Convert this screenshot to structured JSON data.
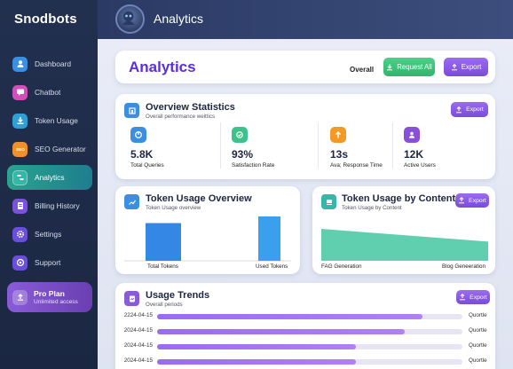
{
  "brand": "Snodbots",
  "header": {
    "title": "Analytics"
  },
  "sidebar": {
    "items": [
      {
        "label": "Dashboard",
        "icon": "user-icon",
        "color": "#3b8fe0"
      },
      {
        "label": "Chatbot",
        "icon": "chat-icon",
        "color": "#d04fb8"
      },
      {
        "label": "Token Usage",
        "icon": "download-icon",
        "color": "#2f9fd6"
      },
      {
        "label": "SEO Generator",
        "icon": "seo-icon",
        "color": "#f0902a"
      },
      {
        "label": "Analytics",
        "icon": "analytics-icon",
        "color": "#34b6a8",
        "active": true
      },
      {
        "label": "Billing History",
        "icon": "billing-icon",
        "color": "#7a54d6"
      },
      {
        "label": "Settings",
        "icon": "gear-icon",
        "color": "#6a4fd8"
      },
      {
        "label": "Support",
        "icon": "support-icon",
        "color": "#6a4fd8"
      }
    ],
    "pro": {
      "title": "Pro Plan",
      "subtitle": "Unlimited access"
    }
  },
  "page": {
    "title": "Analytics",
    "overall_label": "Overall",
    "request_all_label": "Request All",
    "export_label": "Export"
  },
  "overview": {
    "title": "Overview Statistics",
    "subtitle": "Overall performance weittics",
    "export_label": "Export",
    "stats": [
      {
        "value": "5.8K",
        "label": "Total Queries",
        "color": "#3a8fe0",
        "icon": "chart-icon"
      },
      {
        "value": "93%",
        "label": "Satisfaction Rate",
        "color": "#3cc28a",
        "icon": "thumb-icon"
      },
      {
        "value": "13s",
        "label": "Ava; Response Time",
        "color": "#f39a26",
        "icon": "arrow-up-icon"
      },
      {
        "value": "12K",
        "label": "Active Users",
        "color": "#8a4fd8",
        "icon": "user-icon"
      }
    ]
  },
  "token_overview": {
    "title": "Token Usage Overview",
    "subtitle": "Token Usage overview",
    "x_left": "Total Tokens",
    "x_right": "Used Tokens"
  },
  "token_content": {
    "title": "Token Usage by Content",
    "subtitle": "Token Usage by Content",
    "export_label": "Export",
    "x_left": "FAG Generation",
    "x_right": "Blog Geneeration"
  },
  "trends": {
    "title": "Usage Trends",
    "subtitle": "Overall periods",
    "export_label": "Export",
    "rows": [
      {
        "date": "2224-04-15",
        "fill": 0.87,
        "tag": "Quortle"
      },
      {
        "date": "2024-04-15",
        "fill": 0.81,
        "tag": "Quortle"
      },
      {
        "date": "2024-04-15",
        "fill": 0.65,
        "tag": "Quortle"
      },
      {
        "date": "2024-04-15",
        "fill": 0.65,
        "tag": "Quortle"
      }
    ]
  },
  "chart_data": [
    {
      "type": "bar",
      "categories": [
        "Total Tokens",
        "Used Tokens"
      ],
      "values": [
        0.85,
        1.0
      ],
      "title": "Token Usage Overview",
      "xlabel": "",
      "ylabel": ""
    },
    {
      "type": "area",
      "x": [
        "FAG Generation",
        "Blog Geneeration"
      ],
      "values": [
        1.0,
        0.6
      ],
      "title": "Token Usage by Content",
      "xlabel": "",
      "ylabel": ""
    }
  ]
}
